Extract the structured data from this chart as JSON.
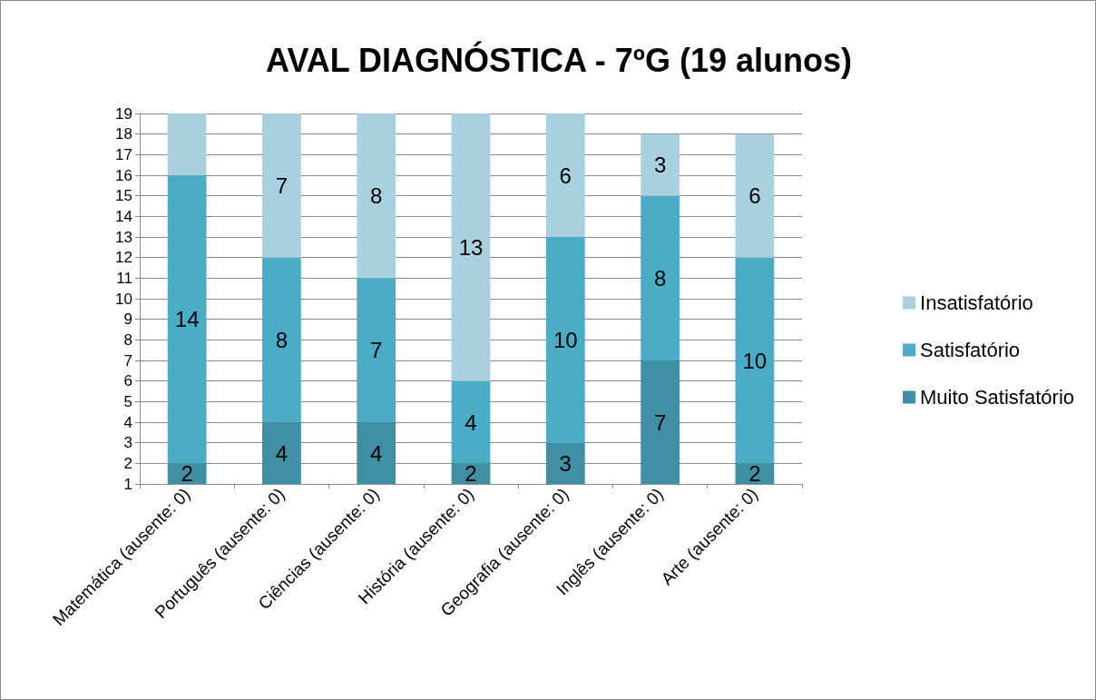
{
  "chart_data": {
    "type": "bar",
    "title": "AVAL DIAGNÓSTICA - 7ºG (19 alunos)",
    "categories": [
      "Matemática (ausente: 0)",
      "Português (ausente: 0)",
      "Ciências (ausente: 0)",
      "História (ausente: 0)",
      "Geografia (ausente: 0)",
      "Inglês (ausente: 0)",
      "Arte (ausente: 0)"
    ],
    "stacked": true,
    "series": [
      {
        "name": "Muito Satisfatório",
        "color": "#3f8fa5",
        "values": [
          2,
          4,
          4,
          2,
          3,
          7,
          2
        ],
        "value_labels": [
          "2",
          "4",
          "4",
          "2",
          "3",
          "7",
          "2"
        ]
      },
      {
        "name": "Satisfatório",
        "color": "#4bacc6",
        "values": [
          14,
          8,
          7,
          4,
          10,
          8,
          10
        ],
        "value_labels": [
          "14",
          "8",
          "7",
          "4",
          "10",
          "8",
          "10"
        ]
      },
      {
        "name": "Insatisfatório",
        "color": "#a9d0de",
        "values": [
          3,
          7,
          8,
          13,
          6,
          3,
          6
        ],
        "value_labels": [
          null,
          "7",
          "8",
          "13",
          "6",
          "3",
          "6"
        ]
      }
    ],
    "ylim": [
      1,
      19
    ],
    "yticks": [
      1,
      2,
      3,
      4,
      5,
      6,
      7,
      8,
      9,
      10,
      11,
      12,
      13,
      14,
      15,
      16,
      17,
      18,
      19
    ],
    "grid": "y",
    "legend": "right"
  }
}
